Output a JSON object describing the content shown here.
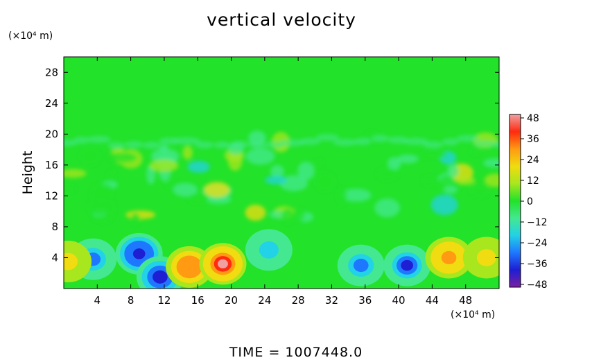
{
  "chart_data": {
    "type": "heatmap",
    "title": "vertical velocity",
    "ylabel": "Height",
    "y_unit": "(×10⁴ m)",
    "x_unit": "(×10⁴ m)",
    "xlim": [
      0,
      52
    ],
    "ylim": [
      0,
      30
    ],
    "x_ticks": [
      4,
      8,
      12,
      16,
      20,
      24,
      28,
      32,
      36,
      40,
      44,
      48
    ],
    "y_ticks": [
      4,
      8,
      12,
      16,
      20,
      24,
      28
    ],
    "colorbar": {
      "ticks": [
        48,
        36,
        24,
        12,
        0,
        -12,
        -24,
        -36,
        -48
      ],
      "range": [
        -48,
        48
      ],
      "colors": [
        "#7a1fa2",
        "#1e1ed2",
        "#1e78ff",
        "#22d2e6",
        "#44e890",
        "#22e22a",
        "#a8e61e",
        "#f0dc10",
        "#ff9a12",
        "#ff2a10",
        "#f0a0a0"
      ]
    },
    "features": [
      {
        "x": 3.5,
        "y": 3.8,
        "value": -28
      },
      {
        "x": 9.0,
        "y": 4.5,
        "value": -42
      },
      {
        "x": 11.5,
        "y": 1.5,
        "value": -34
      },
      {
        "x": 15.0,
        "y": 2.8,
        "value": 32
      },
      {
        "x": 19.0,
        "y": 3.2,
        "value": 46
      },
      {
        "x": 24.5,
        "y": 5.0,
        "value": -20
      },
      {
        "x": 35.5,
        "y": 3.0,
        "value": -28
      },
      {
        "x": 41.0,
        "y": 3.0,
        "value": -36
      },
      {
        "x": 46.0,
        "y": 4.0,
        "value": 30
      },
      {
        "x": 50.5,
        "y": 4.0,
        "value": 20
      },
      {
        "x": 0.5,
        "y": 3.5,
        "value": 20
      }
    ]
  },
  "footer": "TIME  =  1007448.0"
}
